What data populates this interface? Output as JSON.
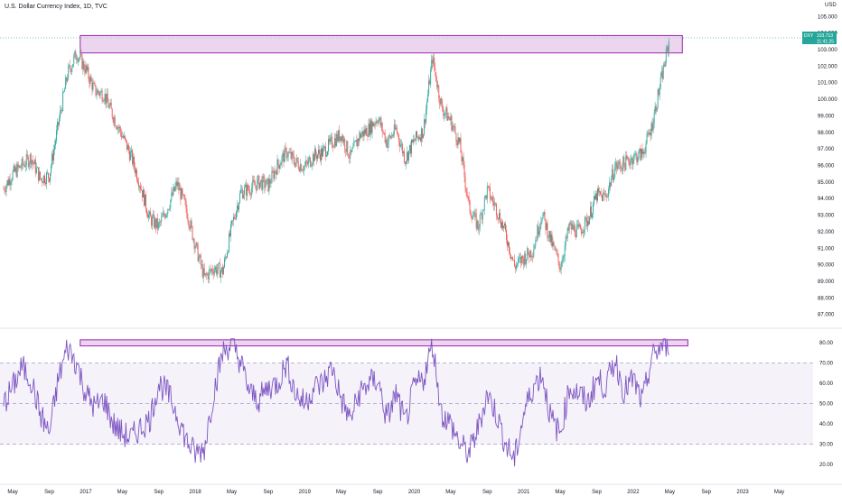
{
  "header": {
    "title": "U.S. Dollar Currency Index, 1D, TVC",
    "currency": "USD"
  },
  "price_label": {
    "symbol": "DXY",
    "value": "103.713",
    "countdown": "11:41:25",
    "color": "#26a69a"
  },
  "colors": {
    "up": "#26a69a",
    "down": "#ef5350",
    "rsi_line": "#7e57c2",
    "zone_fill": "#e1bee7",
    "zone_stroke": "#9c27b0"
  },
  "chart_data": [
    {
      "type": "candlestick",
      "title": "U.S. Dollar Currency Index, 1D, TVC",
      "ylim": [
        86.6,
        105.4
      ],
      "y_ticks": [
        "105.000",
        "104.000",
        "103.000",
        "102.000",
        "101.000",
        "100.000",
        "99.000",
        "98.000",
        "97.000",
        "96.000",
        "95.000",
        "94.000",
        "93.000",
        "92.000",
        "91.000",
        "90.000",
        "89.000",
        "88.000",
        "87.000"
      ],
      "x_ticks": [
        "May",
        "Sep",
        "2017",
        "May",
        "Sep",
        "2018",
        "May",
        "Sep",
        "2019",
        "May",
        "Sep",
        "2020",
        "May",
        "Sep",
        "2021",
        "May",
        "Sep",
        "2022",
        "May",
        "Sep",
        "2023",
        "May"
      ],
      "x_range": [
        "2016-04",
        "2023-05"
      ],
      "close_path": {
        "dates": [
          "2016-04",
          "2016-05",
          "2016-06",
          "2016-07",
          "2016-08",
          "2016-09",
          "2016-10",
          "2016-11",
          "2016-12",
          "2017-01",
          "2017-02",
          "2017-03",
          "2017-04",
          "2017-05",
          "2017-06",
          "2017-07",
          "2017-08",
          "2017-09",
          "2017-10",
          "2017-11",
          "2017-12",
          "2018-01",
          "2018-02",
          "2018-03",
          "2018-04",
          "2018-05",
          "2018-06",
          "2018-07",
          "2018-08",
          "2018-09",
          "2018-10",
          "2018-11",
          "2018-12",
          "2019-01",
          "2019-02",
          "2019-03",
          "2019-04",
          "2019-05",
          "2019-06",
          "2019-07",
          "2019-08",
          "2019-09",
          "2019-10",
          "2019-11",
          "2019-12",
          "2020-01",
          "2020-02",
          "2020-03",
          "2020-04",
          "2020-05",
          "2020-06",
          "2020-07",
          "2020-08",
          "2020-09",
          "2020-10",
          "2020-11",
          "2020-12",
          "2021-01",
          "2021-02",
          "2021-03",
          "2021-04",
          "2021-05",
          "2021-06",
          "2021-07",
          "2021-08",
          "2021-09",
          "2021-10",
          "2021-11",
          "2021-12",
          "2022-01",
          "2022-02",
          "2022-03",
          "2022-04",
          "2022-05"
        ],
        "values": [
          94.6,
          95.5,
          96.0,
          96.5,
          95.2,
          95.4,
          98.5,
          101.5,
          102.8,
          101.8,
          100.5,
          100.3,
          99.0,
          97.8,
          96.5,
          94.8,
          92.8,
          92.3,
          93.5,
          94.9,
          93.4,
          91.2,
          89.2,
          89.8,
          89.6,
          92.3,
          94.4,
          94.6,
          95.0,
          94.8,
          96.0,
          96.8,
          96.2,
          95.9,
          96.6,
          96.8,
          97.4,
          97.9,
          96.5,
          97.8,
          98.2,
          98.9,
          97.4,
          98.2,
          96.4,
          97.5,
          98.1,
          102.5,
          99.5,
          98.7,
          97.2,
          93.5,
          92.3,
          94.5,
          93.4,
          91.9,
          89.9,
          90.4,
          90.9,
          93.1,
          91.4,
          89.9,
          92.3,
          92.0,
          92.7,
          94.2,
          94.1,
          95.9,
          96.1,
          96.5,
          96.7,
          98.3,
          101.0,
          103.7
        ]
      },
      "annotation_box": {
        "y_low": 102.8,
        "y_high": 103.85,
        "x_start": "2016-12",
        "x_end": "2022-05"
      },
      "last_value": 103.713
    },
    {
      "type": "line",
      "title": "",
      "series": [
        {
          "values": [
            50,
            58,
            68,
            62,
            45,
            35,
            62,
            78,
            70,
            55,
            48,
            52,
            40,
            35,
            33,
            38,
            42,
            60,
            55,
            45,
            32,
            25,
            28,
            55,
            75,
            80,
            70,
            55,
            52,
            58,
            60,
            70,
            55,
            50,
            58,
            60,
            68,
            52,
            42,
            55,
            60,
            62,
            42,
            55,
            40,
            58,
            62,
            80,
            45,
            40,
            30,
            25,
            38,
            55,
            45,
            30,
            22,
            45,
            58,
            65,
            42,
            35,
            58,
            55,
            50,
            62,
            58,
            72,
            56,
            62,
            50,
            72,
            78,
            80
          ]
        }
      ],
      "ylim": [
        15,
        85
      ],
      "y_ticks": [
        "80.00",
        "70.00",
        "60.00",
        "50.00",
        "40.00",
        "30.00",
        "20.00"
      ],
      "reference_lines": [
        70,
        50,
        30
      ],
      "annotation_box": {
        "y_low": 78.5,
        "y_high": 81.5,
        "x_start": "2016-12",
        "x_end": "2022-06"
      }
    }
  ]
}
